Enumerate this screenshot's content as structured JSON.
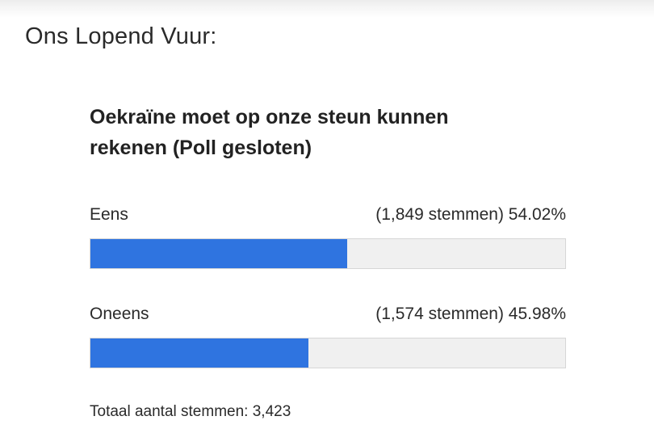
{
  "page": {
    "heading": "Ons Lopend Vuur:"
  },
  "poll": {
    "question": "Oekraïne moet op onze steun kunnen rekenen (Poll gesloten)",
    "options": [
      {
        "label": "Eens",
        "result_text": "(1,849 stemmen) 54.02%",
        "votes": 1849,
        "percent": 54.02
      },
      {
        "label": "Oneens",
        "result_text": "(1,574 stemmen) 45.98%",
        "votes": 1574,
        "percent": 45.98
      }
    ],
    "total_text": "Totaal aantal stemmen: 3,423",
    "bar_color": "#2f74e0",
    "track_color": "#f0f0f0"
  }
}
